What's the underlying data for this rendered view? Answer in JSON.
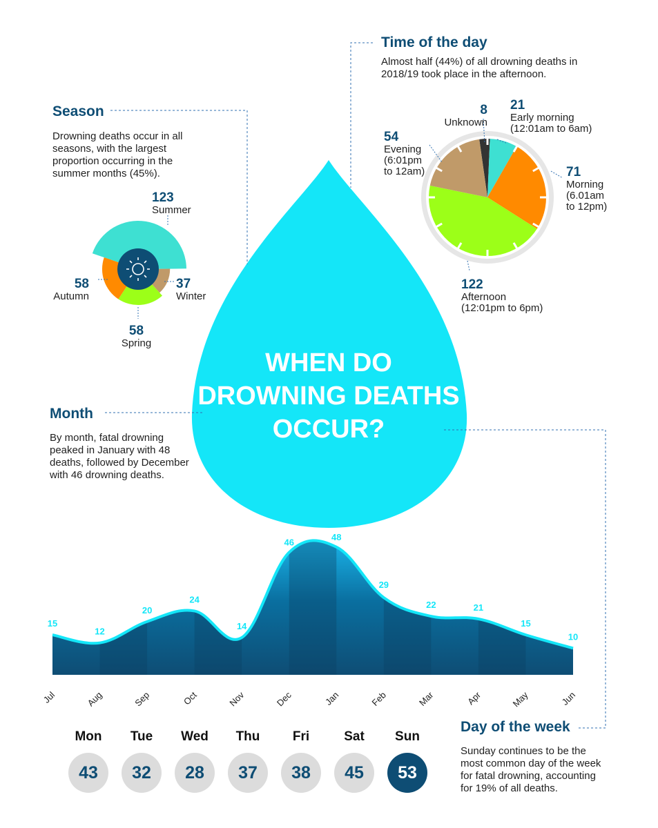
{
  "main_title_lines": [
    "WHEN DO",
    "DROWNING DEATHS",
    "OCCUR?"
  ],
  "colors": {
    "navy": "#0e4d74",
    "drop": "#14e6f8",
    "summer": "#3ee0d2",
    "autumn": "#ff8a00",
    "spring": "#9cff18",
    "winter": "#c09a69",
    "unknown": "#333333",
    "grey": "#dcdcdc"
  },
  "season": {
    "heading": "Season",
    "text_lines": [
      "Drowning deaths occur in all",
      "seasons, with the largest",
      "proportion occurring in the",
      "summer months (45%)."
    ],
    "icon": "sun-icon",
    "labels": {
      "summer": {
        "value": "123",
        "name": "Summer"
      },
      "autumn": {
        "value": "58",
        "name": "Autumn"
      },
      "winter": {
        "value": "37",
        "name": "Winter"
      },
      "spring": {
        "value": "58",
        "name": "Spring"
      }
    }
  },
  "time_of_day": {
    "heading": "Time of the day",
    "text_lines": [
      "Almost half (44%) of all drowning deaths in",
      "2018/19 took place in the afternoon."
    ],
    "labels": {
      "unknown": {
        "value": "8",
        "lines": [
          "Unknown"
        ]
      },
      "early_morning": {
        "value": "21",
        "lines": [
          "Early morning",
          "(12:01am to 6am)"
        ]
      },
      "morning": {
        "value": "71",
        "lines": [
          "Morning",
          "(6.01am",
          "to 12pm)"
        ]
      },
      "afternoon": {
        "value": "122",
        "lines": [
          "Afternoon",
          "(12:01pm to 6pm)"
        ]
      },
      "evening": {
        "value": "54",
        "lines": [
          "Evening",
          "(6:01pm",
          "to 12am)"
        ]
      }
    }
  },
  "month": {
    "heading": "Month",
    "text_lines": [
      "By month, fatal drowning",
      "peaked in January with 48",
      "deaths, followed by December",
      "with 46 drowning deaths."
    ]
  },
  "day_of_week": {
    "heading": "Day of the week",
    "text_lines": [
      "Sunday continues to be the",
      "most common day of the week",
      "for fatal drowning, accounting",
      "for 19% of all deaths."
    ],
    "days": [
      {
        "name": "Mon",
        "value": "43"
      },
      {
        "name": "Tue",
        "value": "32"
      },
      {
        "name": "Wed",
        "value": "28"
      },
      {
        "name": "Thu",
        "value": "37"
      },
      {
        "name": "Fri",
        "value": "38"
      },
      {
        "name": "Sat",
        "value": "45"
      },
      {
        "name": "Sun",
        "value": "53"
      }
    ],
    "highlight": "Sun"
  },
  "chart_data": [
    {
      "type": "pie",
      "categories": [
        "Summer",
        "Autumn",
        "Spring",
        "Winter"
      ],
      "values": [
        123,
        58,
        58,
        37
      ]
    },
    {
      "type": "pie",
      "categories": [
        "Unknown",
        "Early morning",
        "Morning",
        "Afternoon",
        "Evening"
      ],
      "values": [
        8,
        21,
        71,
        122,
        54
      ]
    },
    {
      "type": "area",
      "categories": [
        "Jul",
        "Aug",
        "Sep",
        "Oct",
        "Nov",
        "Dec",
        "Jan",
        "Feb",
        "Mar",
        "Apr",
        "May",
        "Jun"
      ],
      "values": [
        15,
        12,
        20,
        24,
        14,
        46,
        48,
        29,
        22,
        21,
        15,
        10
      ],
      "ylim": [
        0,
        48
      ]
    },
    {
      "type": "table",
      "categories": [
        "Mon",
        "Tue",
        "Wed",
        "Thu",
        "Fri",
        "Sat",
        "Sun"
      ],
      "values": [
        43,
        32,
        28,
        37,
        38,
        45,
        53
      ]
    }
  ]
}
